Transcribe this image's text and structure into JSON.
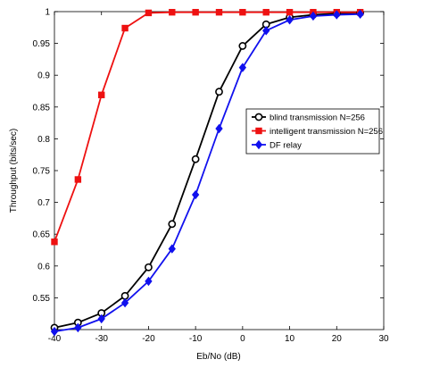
{
  "chart_data": {
    "type": "line",
    "title": "",
    "xlabel": "Eb/No (dB)",
    "ylabel": "Throughput (bits/sec)",
    "xlim": [
      -40,
      30
    ],
    "ylim": [
      0.5,
      1.0
    ],
    "xticks": [
      -40,
      -30,
      -20,
      -10,
      0,
      10,
      20,
      30
    ],
    "yticks": [
      0.55,
      0.6,
      0.65,
      0.7,
      0.75,
      0.8,
      0.85,
      0.9,
      0.95,
      1
    ],
    "ytick_labels": [
      "0.55",
      "0.6",
      "0.65",
      "0.7",
      "0.75",
      "0.8",
      "0.85",
      "0.9",
      "0.95",
      "1"
    ],
    "xtick_labels": [
      "-40",
      "-30",
      "-20",
      "-10",
      "0",
      "10",
      "20",
      "30"
    ],
    "grid": false,
    "legend_position": "right",
    "x": [
      -40,
      -35,
      -30,
      -25,
      -20,
      -15,
      -10,
      -5,
      0,
      5,
      10,
      15,
      20,
      25
    ],
    "series": [
      {
        "name": "blind transmission N=256",
        "color": "#000000",
        "marker": "circle",
        "values": [
          0.503,
          0.511,
          0.526,
          0.553,
          0.598,
          0.666,
          0.768,
          0.874,
          0.946,
          0.98,
          0.991,
          0.995,
          0.997,
          0.998
        ]
      },
      {
        "name": "intelligent transmission N=256",
        "color": "#ee1111",
        "marker": "square",
        "values": [
          0.638,
          0.736,
          0.869,
          0.974,
          0.998,
          0.999,
          0.999,
          0.999,
          0.999,
          0.999,
          0.999,
          0.999,
          0.999,
          0.999
        ]
      },
      {
        "name": "DF relay",
        "color": "#1111ee",
        "marker": "diamond",
        "values": [
          0.497,
          0.503,
          0.517,
          0.542,
          0.576,
          0.627,
          0.712,
          0.816,
          0.912,
          0.97,
          0.987,
          0.993,
          0.995,
          0.996
        ]
      }
    ]
  }
}
